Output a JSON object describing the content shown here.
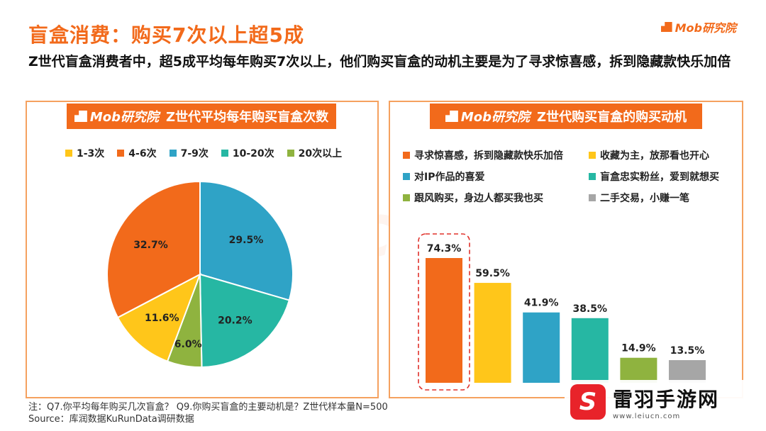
{
  "header": {
    "title": "盲盒消费：购买7次以上超5成",
    "brand": "Mob研究院",
    "subtitle": "Z世代盲盒消费者中，超5成平均每年购买7次以上，他们购买盲盒的动机主要是为了寻求惊喜感，拆到隐藏款快乐加倍"
  },
  "watermark": "MobTech 袤博",
  "chart_data": [
    {
      "type": "pie",
      "title": "Z世代平均每年购买盲盒次数",
      "header_brand": "Mob研究院",
      "legend_position": "top",
      "categories": [
        "1-3次",
        "4-6次",
        "7-9次",
        "10-20次",
        "20次以上"
      ],
      "values": [
        11.6,
        32.7,
        29.5,
        20.2,
        6.0
      ],
      "labels": [
        "11.6%",
        "32.7%",
        "29.5%",
        "20.2%",
        "6.0%"
      ],
      "colors": [
        "#ffc61a",
        "#f26a1b",
        "#2fa3c6",
        "#26b7a3",
        "#8fb33f"
      ]
    },
    {
      "type": "bar",
      "title": "Z世代购买盲盒的购买动机",
      "header_brand": "Mob研究院",
      "legend_position": "top",
      "categories": [
        "寻求惊喜感，拆到隐藏款快乐加倍",
        "收藏为主，放那看也开心",
        "对IP作品的喜爱",
        "盲盒忠实粉丝，爱到就想买",
        "跟风购买，身边人都买我也买",
        "二手交易，小赚一笔"
      ],
      "values": [
        74.3,
        59.5,
        41.9,
        38.5,
        14.9,
        13.5
      ],
      "labels": [
        "74.3%",
        "59.5%",
        "41.9%",
        "38.5%",
        "14.9%",
        "13.5%"
      ],
      "colors": [
        "#f26a1b",
        "#ffc61a",
        "#2fa3c6",
        "#26b7a3",
        "#8fb33f",
        "#a6a6a6"
      ],
      "highlight_index": 0,
      "ylim": [
        0,
        80
      ]
    }
  ],
  "footer": {
    "note": "注：Q7.你平均每年购买几次盲盒？ Q9.你购买盲盒的主要动机是？Z世代样本量N=500",
    "source": "Source：库润数据KuRunData调研数据"
  },
  "site_watermark": {
    "logo_char": "S",
    "name": "雷羽手游网",
    "url": "www.leiucn.com"
  }
}
